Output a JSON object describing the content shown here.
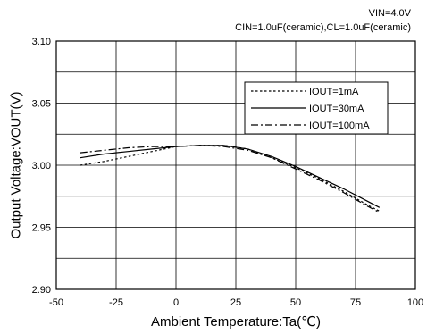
{
  "chart_data": {
    "type": "line",
    "title": "",
    "annotations": [
      "VIN=4.0V",
      "CIN=1.0uF(ceramic),CL=1.0uF(ceramic)"
    ],
    "xlabel": "Ambient Temperature:Ta(℃)",
    "ylabel": "Output Voltage:VOUT(V)",
    "xlim": [
      -50,
      100
    ],
    "ylim": [
      2.9,
      3.1
    ],
    "x_ticks": [
      -50,
      -25,
      0,
      25,
      50,
      75,
      100
    ],
    "y_ticks": [
      2.9,
      2.95,
      3.0,
      3.05,
      3.1
    ],
    "x_tick_labels": [
      "-50",
      "-25",
      "0",
      "25",
      "50",
      "75",
      "100"
    ],
    "y_tick_labels": [
      "2.90",
      "2.95",
      "3.00",
      "3.05",
      "3.10"
    ],
    "grid": true,
    "legend_position": "top-right",
    "series": [
      {
        "name": "IOUT=1mA",
        "style": "dotted",
        "x": [
          -40,
          -30,
          -20,
          -10,
          0,
          10,
          20,
          30,
          40,
          50,
          60,
          70,
          80,
          85
        ],
        "y": [
          3.0,
          3.003,
          3.007,
          3.011,
          3.015,
          3.016,
          3.016,
          3.013,
          3.006,
          2.998,
          2.989,
          2.979,
          2.968,
          2.963
        ]
      },
      {
        "name": "IOUT=30mA",
        "style": "solid",
        "x": [
          -40,
          -30,
          -20,
          -10,
          0,
          10,
          20,
          30,
          40,
          50,
          60,
          70,
          80,
          85
        ],
        "y": [
          3.006,
          3.009,
          3.011,
          3.013,
          3.015,
          3.016,
          3.016,
          3.013,
          3.007,
          2.999,
          2.99,
          2.981,
          2.971,
          2.966
        ]
      },
      {
        "name": "IOUT=100mA",
        "style": "dash-dot",
        "x": [
          -40,
          -30,
          -20,
          -10,
          0,
          10,
          20,
          30,
          40,
          50,
          60,
          70,
          80,
          85
        ],
        "y": [
          3.01,
          3.012,
          3.014,
          3.015,
          3.015,
          3.016,
          3.015,
          3.012,
          3.006,
          2.997,
          2.988,
          2.978,
          2.967,
          2.962
        ]
      }
    ]
  }
}
